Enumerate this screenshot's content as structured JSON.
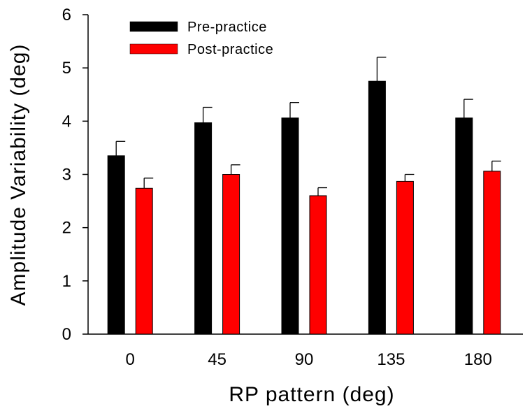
{
  "chart_data": {
    "type": "bar",
    "title": "",
    "xlabel": "RP pattern (deg)",
    "ylabel": "Amplitude Variability (deg)",
    "categories": [
      "0",
      "45",
      "90",
      "135",
      "180"
    ],
    "ylim": [
      0,
      6
    ],
    "yticks": [
      "0",
      "1",
      "2",
      "3",
      "4",
      "5",
      "6"
    ],
    "grid": false,
    "legend_position": "top-left",
    "series": [
      {
        "name": "Pre-practice",
        "color": "#000000",
        "values": [
          3.35,
          3.97,
          4.06,
          4.75,
          4.06
        ],
        "errors": [
          0.27,
          0.29,
          0.29,
          0.45,
          0.35
        ]
      },
      {
        "name": "Post-practice",
        "color": "#ff0000",
        "values": [
          2.74,
          3.0,
          2.6,
          2.87,
          3.06
        ],
        "errors": [
          0.19,
          0.18,
          0.15,
          0.13,
          0.19
        ]
      }
    ]
  }
}
